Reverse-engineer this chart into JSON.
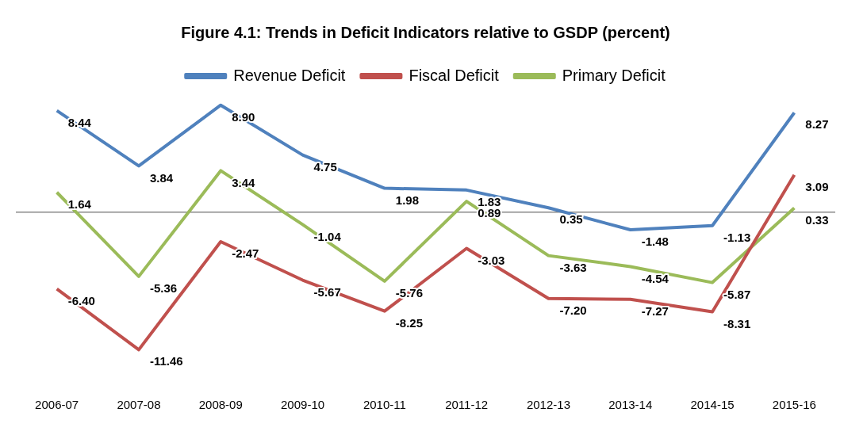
{
  "chart_data": {
    "type": "line",
    "title": "Figure 4.1: Trends in Deficit Indicators relative to GSDP (percent)",
    "categories": [
      "2006-07",
      "2007-08",
      "2008-09",
      "2009-10",
      "2010-11",
      "2011-12",
      "2012-13",
      "2013-14",
      "2014-15",
      "2015-16"
    ],
    "series": [
      {
        "name": "Revenue Deficit",
        "color": "#4f81bd",
        "values": [
          8.44,
          3.84,
          8.9,
          4.75,
          1.98,
          1.83,
          0.35,
          -1.48,
          -1.13,
          8.27
        ],
        "value_labels": [
          "8.44",
          "3.84",
          "8.90",
          "4.75",
          "1.98",
          "1.83",
          "0.35",
          "-1.48",
          "-1.13",
          "8.27"
        ]
      },
      {
        "name": "Fiscal Deficit",
        "color": "#c0504d",
        "values": [
          -6.4,
          -11.46,
          -2.47,
          -5.67,
          -8.25,
          -3.03,
          -7.2,
          -7.27,
          -8.31,
          3.09
        ],
        "value_labels": [
          "-6.40",
          "-11.46",
          "-2.47",
          "-5.67",
          "-8.25",
          "-3.03",
          "-7.20",
          "-7.27",
          "-8.31",
          "3.09"
        ]
      },
      {
        "name": "Primary Deficit",
        "color": "#9bbb59",
        "values": [
          1.64,
          -5.36,
          3.44,
          -1.04,
          -5.76,
          0.89,
          -3.63,
          -4.54,
          -5.87,
          0.33
        ],
        "value_labels": [
          "1.64",
          "-5.36",
          "3.44",
          "-1.04",
          "-5.76",
          "0.89",
          "-3.63",
          "-4.54",
          "-5.87",
          "0.33"
        ]
      }
    ],
    "legend": "top",
    "grid": false,
    "tick_labels": "x",
    "marker": "none",
    "line_style": "solid"
  }
}
